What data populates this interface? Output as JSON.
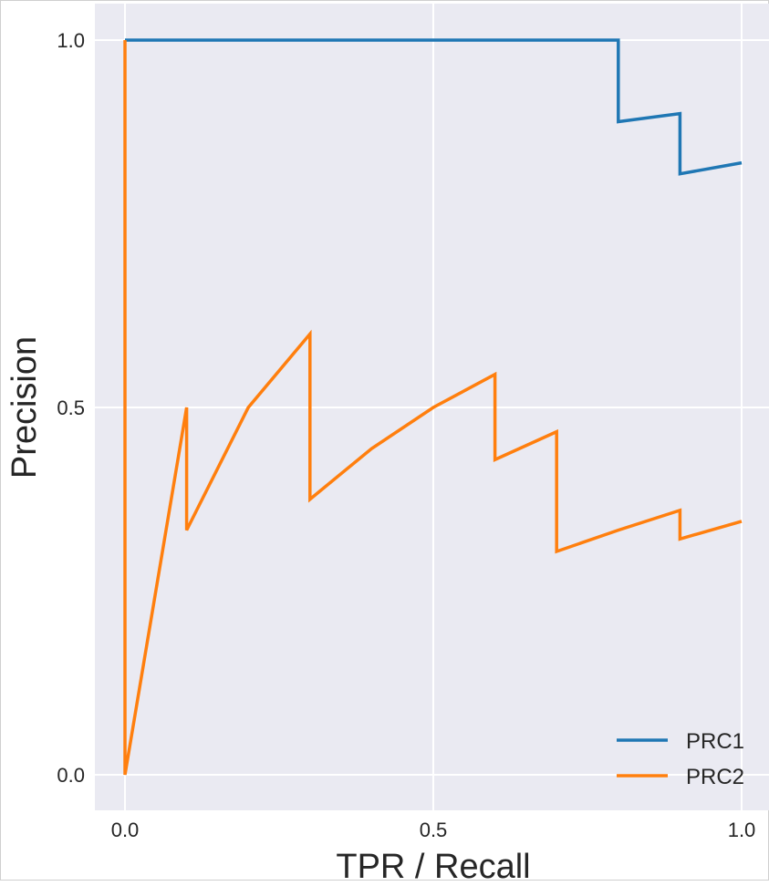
{
  "chart_data": {
    "type": "line",
    "title": "",
    "xlabel": "TPR / Recall",
    "ylabel": "Precision",
    "xlim": [
      -0.05,
      1.05
    ],
    "ylim": [
      -0.05,
      1.05
    ],
    "xticks": [
      0.0,
      0.5,
      1.0
    ],
    "xtick_labels": [
      "0.0",
      "0.5",
      "1.0"
    ],
    "yticks": [
      0.0,
      0.5,
      1.0
    ],
    "ytick_labels": [
      "0.0",
      "0.5",
      "1.0"
    ],
    "grid": true,
    "legend_position": "lower-right",
    "series": [
      {
        "name": "PRC1",
        "color": "#1f77b4",
        "x": [
          0.0,
          0.0,
          0.8,
          0.8,
          0.9,
          0.9,
          1.0
        ],
        "y": [
          1.0,
          1.0,
          1.0,
          0.889,
          0.9,
          0.818,
          0.833
        ]
      },
      {
        "name": "PRC2",
        "color": "#ff7f0e",
        "x": [
          0.0,
          0.0,
          0.1,
          0.1,
          0.2,
          0.3,
          0.3,
          0.4,
          0.5,
          0.6,
          0.6,
          0.7,
          0.7,
          0.8,
          0.9,
          0.9,
          1.0
        ],
        "y": [
          1.0,
          0.0,
          0.5,
          0.333,
          0.5,
          0.6,
          0.375,
          0.444,
          0.5,
          0.545,
          0.429,
          0.467,
          0.304,
          0.333,
          0.36,
          0.321,
          0.345
        ]
      }
    ]
  }
}
